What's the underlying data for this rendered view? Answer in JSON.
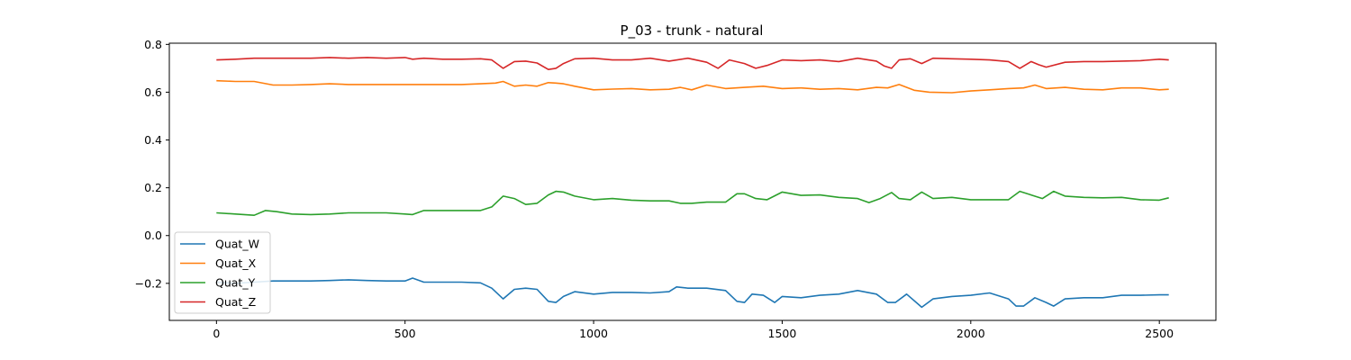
{
  "chart_data": {
    "type": "line",
    "title": "P_03 - trunk - natural",
    "xlabel": "",
    "ylabel": "",
    "xlim": [
      -125,
      2650
    ],
    "ylim": [
      -0.355,
      0.805
    ],
    "xticks": [
      0,
      500,
      1000,
      1500,
      2000,
      2500
    ],
    "yticks": [
      -0.2,
      0.0,
      0.2,
      0.4,
      0.6,
      0.8
    ],
    "ytick_labels": [
      "−0.2",
      "0.0",
      "0.2",
      "0.4",
      "0.6",
      "0.8"
    ],
    "grid": false,
    "legend_position": "lower-left",
    "series": [
      {
        "name": "Quat_W",
        "color": "#1f77b4",
        "x": [
          0,
          50,
          100,
          150,
          200,
          250,
          300,
          350,
          400,
          450,
          500,
          520,
          550,
          600,
          650,
          700,
          730,
          760,
          790,
          820,
          850,
          880,
          900,
          920,
          950,
          1000,
          1050,
          1100,
          1150,
          1200,
          1220,
          1250,
          1300,
          1350,
          1380,
          1400,
          1420,
          1450,
          1480,
          1500,
          1550,
          1600,
          1650,
          1700,
          1750,
          1780,
          1800,
          1830,
          1870,
          1900,
          1950,
          2000,
          2050,
          2100,
          2120,
          2140,
          2170,
          2200,
          2220,
          2250,
          2300,
          2350,
          2400,
          2450,
          2500,
          2525
        ],
        "y": [
          -0.195,
          -0.2,
          -0.195,
          -0.19,
          -0.19,
          -0.19,
          -0.188,
          -0.185,
          -0.188,
          -0.19,
          -0.19,
          -0.178,
          -0.195,
          -0.195,
          -0.195,
          -0.198,
          -0.22,
          -0.265,
          -0.225,
          -0.22,
          -0.225,
          -0.275,
          -0.28,
          -0.255,
          -0.235,
          -0.245,
          -0.238,
          -0.238,
          -0.24,
          -0.235,
          -0.215,
          -0.22,
          -0.22,
          -0.23,
          -0.275,
          -0.28,
          -0.245,
          -0.25,
          -0.28,
          -0.255,
          -0.26,
          -0.25,
          -0.245,
          -0.23,
          -0.245,
          -0.28,
          -0.28,
          -0.245,
          -0.3,
          -0.265,
          -0.255,
          -0.25,
          -0.24,
          -0.265,
          -0.295,
          -0.295,
          -0.26,
          -0.28,
          -0.295,
          -0.265,
          -0.26,
          -0.26,
          -0.25,
          -0.25,
          -0.248,
          -0.248
        ]
      },
      {
        "name": "Quat_X",
        "color": "#ff7f0e",
        "x": [
          0,
          50,
          100,
          150,
          200,
          250,
          300,
          350,
          400,
          450,
          500,
          550,
          600,
          650,
          700,
          740,
          760,
          790,
          820,
          850,
          880,
          900,
          920,
          950,
          1000,
          1050,
          1100,
          1150,
          1200,
          1230,
          1260,
          1300,
          1350,
          1400,
          1450,
          1500,
          1550,
          1600,
          1650,
          1700,
          1750,
          1780,
          1810,
          1850,
          1890,
          1950,
          2000,
          2050,
          2100,
          2140,
          2170,
          2200,
          2250,
          2300,
          2350,
          2400,
          2450,
          2500,
          2525
        ],
        "y": [
          0.648,
          0.645,
          0.645,
          0.63,
          0.63,
          0.632,
          0.635,
          0.632,
          0.632,
          0.632,
          0.632,
          0.632,
          0.632,
          0.632,
          0.635,
          0.638,
          0.645,
          0.625,
          0.63,
          0.625,
          0.64,
          0.638,
          0.635,
          0.625,
          0.61,
          0.613,
          0.615,
          0.61,
          0.612,
          0.62,
          0.61,
          0.63,
          0.615,
          0.62,
          0.625,
          0.615,
          0.618,
          0.612,
          0.615,
          0.61,
          0.62,
          0.618,
          0.632,
          0.608,
          0.6,
          0.598,
          0.605,
          0.61,
          0.615,
          0.618,
          0.63,
          0.615,
          0.62,
          0.612,
          0.61,
          0.618,
          0.618,
          0.61,
          0.612
        ]
      },
      {
        "name": "Quat_Y",
        "color": "#2ca02c",
        "x": [
          0,
          50,
          100,
          130,
          160,
          200,
          250,
          300,
          350,
          400,
          450,
          500,
          520,
          550,
          600,
          650,
          700,
          730,
          760,
          790,
          820,
          850,
          880,
          900,
          920,
          950,
          1000,
          1050,
          1100,
          1150,
          1200,
          1230,
          1260,
          1300,
          1350,
          1380,
          1400,
          1430,
          1460,
          1500,
          1550,
          1600,
          1650,
          1700,
          1730,
          1760,
          1790,
          1810,
          1840,
          1870,
          1900,
          1950,
          2000,
          2050,
          2100,
          2130,
          2160,
          2190,
          2220,
          2250,
          2300,
          2350,
          2400,
          2450,
          2500,
          2525
        ],
        "y": [
          0.095,
          0.09,
          0.085,
          0.105,
          0.1,
          0.09,
          0.088,
          0.09,
          0.095,
          0.095,
          0.095,
          0.09,
          0.088,
          0.105,
          0.105,
          0.105,
          0.105,
          0.12,
          0.165,
          0.155,
          0.13,
          0.135,
          0.17,
          0.185,
          0.182,
          0.165,
          0.15,
          0.155,
          0.148,
          0.145,
          0.145,
          0.135,
          0.135,
          0.14,
          0.14,
          0.175,
          0.175,
          0.155,
          0.15,
          0.182,
          0.168,
          0.17,
          0.16,
          0.155,
          0.138,
          0.155,
          0.18,
          0.155,
          0.15,
          0.182,
          0.155,
          0.16,
          0.15,
          0.15,
          0.15,
          0.185,
          0.17,
          0.155,
          0.185,
          0.165,
          0.16,
          0.158,
          0.16,
          0.15,
          0.148,
          0.158
        ]
      },
      {
        "name": "Quat_Z",
        "color": "#d62728",
        "x": [
          0,
          50,
          100,
          150,
          200,
          250,
          300,
          350,
          400,
          450,
          500,
          520,
          550,
          600,
          650,
          700,
          730,
          760,
          790,
          820,
          850,
          880,
          900,
          920,
          950,
          1000,
          1050,
          1100,
          1150,
          1200,
          1250,
          1300,
          1330,
          1360,
          1400,
          1430,
          1460,
          1500,
          1550,
          1600,
          1650,
          1700,
          1750,
          1770,
          1790,
          1810,
          1840,
          1870,
          1900,
          1950,
          2000,
          2050,
          2100,
          2130,
          2160,
          2180,
          2200,
          2250,
          2300,
          2350,
          2400,
          2450,
          2500,
          2525
        ],
        "y": [
          0.735,
          0.738,
          0.742,
          0.742,
          0.742,
          0.742,
          0.745,
          0.742,
          0.745,
          0.742,
          0.745,
          0.738,
          0.742,
          0.738,
          0.738,
          0.74,
          0.735,
          0.7,
          0.728,
          0.73,
          0.722,
          0.695,
          0.7,
          0.72,
          0.74,
          0.742,
          0.735,
          0.735,
          0.742,
          0.73,
          0.742,
          0.725,
          0.7,
          0.735,
          0.72,
          0.7,
          0.712,
          0.735,
          0.732,
          0.735,
          0.728,
          0.742,
          0.73,
          0.71,
          0.7,
          0.735,
          0.74,
          0.72,
          0.742,
          0.74,
          0.738,
          0.735,
          0.728,
          0.7,
          0.728,
          0.715,
          0.705,
          0.725,
          0.728,
          0.728,
          0.73,
          0.732,
          0.738,
          0.735
        ]
      }
    ]
  }
}
